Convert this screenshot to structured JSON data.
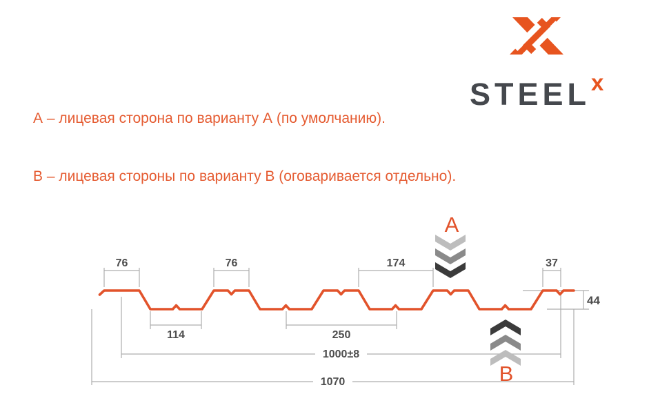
{
  "logo": {
    "brand": "STEEL",
    "sup": "x"
  },
  "notes": {
    "line_a": "А – лицевая сторона по варианту А (по умолчанию).",
    "line_b": "В – лицевая стороны по варианту В (оговаривается отдельно)."
  },
  "diagram": {
    "type": "profile-cross-section",
    "markers": {
      "a": "A",
      "b": "B"
    },
    "dimensions": {
      "crest_width_1": "76",
      "crest_width_2": "76",
      "crest_spacing": "174",
      "end_crest_width": "37",
      "profile_height": "44",
      "valley_width": "114",
      "rib_pitch": "250",
      "working_width": "1000±8",
      "overall_width": "1070"
    },
    "colors": {
      "profile": "#E2532B",
      "accent": "#E7541F",
      "note_text": "#E55B31",
      "dim_line": "#ADADAD",
      "dim_text": "#4D4D4D",
      "brand_text": "#45484D",
      "chevrons": [
        "#BDBDBD",
        "#8A8A8A",
        "#3B3B3B"
      ]
    }
  }
}
